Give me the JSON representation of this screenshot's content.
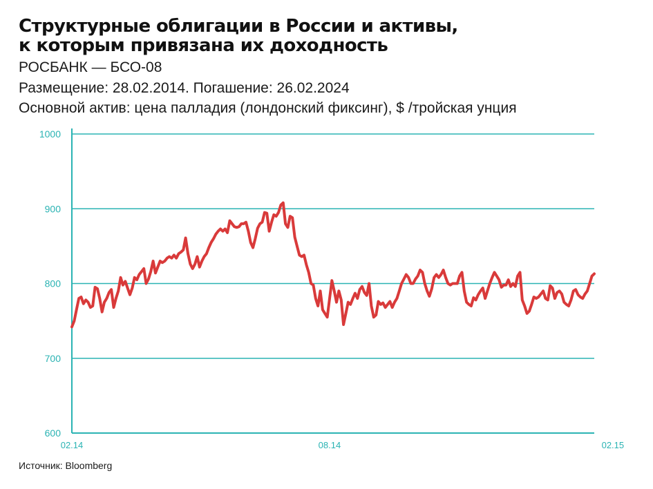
{
  "title_lines": [
    "Структурные облигации в России и активы,",
    "к которым привязана их доходность"
  ],
  "subtitle_lines": [
    "РОСБАНК — БСО-08",
    "Размещение: 28.02.2014. Погашение: 26.02.2024",
    "Основной актив: цена палладия (лондонский фиксинг), $ /тройская унция"
  ],
  "source": "Источник: Bloomberg",
  "colors": {
    "line": "#d93a3a",
    "grid": "#2ab3b3",
    "axis_text": "#2ab3b3"
  },
  "chart_data": {
    "type": "line",
    "title": "",
    "xlabel": "",
    "ylabel": "",
    "ylim": [
      600,
      1000
    ],
    "grid": true,
    "yticks": [
      {
        "value": 600,
        "label": "600"
      },
      {
        "value": 700,
        "label": "700"
      },
      {
        "value": 800,
        "label": "800"
      },
      {
        "value": 900,
        "label": "900"
      },
      {
        "value": 1000,
        "label": "1000"
      }
    ],
    "xticks": [
      {
        "index": 0,
        "label": "02.14"
      },
      {
        "index": 111,
        "label": "08.14"
      },
      {
        "index": 233,
        "label": "02.15"
      }
    ],
    "series": [
      {
        "values": [
          742,
          750,
          765,
          780,
          782,
          773,
          778,
          775,
          768,
          770,
          795,
          793,
          780,
          762,
          775,
          780,
          788,
          792,
          768,
          780,
          790,
          808,
          798,
          803,
          794,
          785,
          794,
          808,
          805,
          812,
          816,
          820,
          800,
          806,
          816,
          830,
          814,
          822,
          830,
          828,
          830,
          834,
          836,
          834,
          838,
          834,
          840,
          842,
          845,
          861,
          840,
          826,
          820,
          826,
          836,
          822,
          830,
          836,
          840,
          848,
          855,
          860,
          866,
          870,
          873,
          870,
          873,
          868,
          884,
          880,
          876,
          875,
          876,
          880,
          880,
          882,
          870,
          855,
          848,
          860,
          874,
          880,
          882,
          895,
          894,
          870,
          882,
          892,
          890,
          895,
          905,
          908,
          880,
          875,
          890,
          888,
          862,
          850,
          838,
          836,
          838,
          825,
          815,
          800,
          798,
          780,
          770,
          790,
          765,
          760,
          755,
          780,
          804,
          790,
          775,
          790,
          778,
          745,
          760,
          775,
          772,
          780,
          787,
          780,
          792,
          796,
          788,
          784,
          800,
          770,
          755,
          758,
          776,
          772,
          774,
          768,
          772,
          776,
          768,
          775,
          780,
          790,
          800,
          806,
          812,
          808,
          800,
          800,
          806,
          810,
          818,
          815,
          800,
          790,
          783,
          793,
          808,
          812,
          808,
          812,
          818,
          808,
          800,
          798,
          800,
          800,
          800,
          810,
          815,
          790,
          775,
          772,
          770,
          781,
          778,
          785,
          790,
          794,
          780,
          790,
          800,
          808,
          815,
          810,
          805,
          795,
          798,
          798,
          805,
          796,
          800,
          796,
          810,
          815,
          778,
          770,
          760,
          763,
          772,
          782,
          780,
          782,
          786,
          790,
          780,
          778,
          797,
          794,
          780,
          788,
          790,
          786,
          775,
          772,
          770,
          778,
          790,
          792,
          785,
          782,
          780,
          786,
          790,
          800,
          810,
          813
        ]
      }
    ]
  }
}
